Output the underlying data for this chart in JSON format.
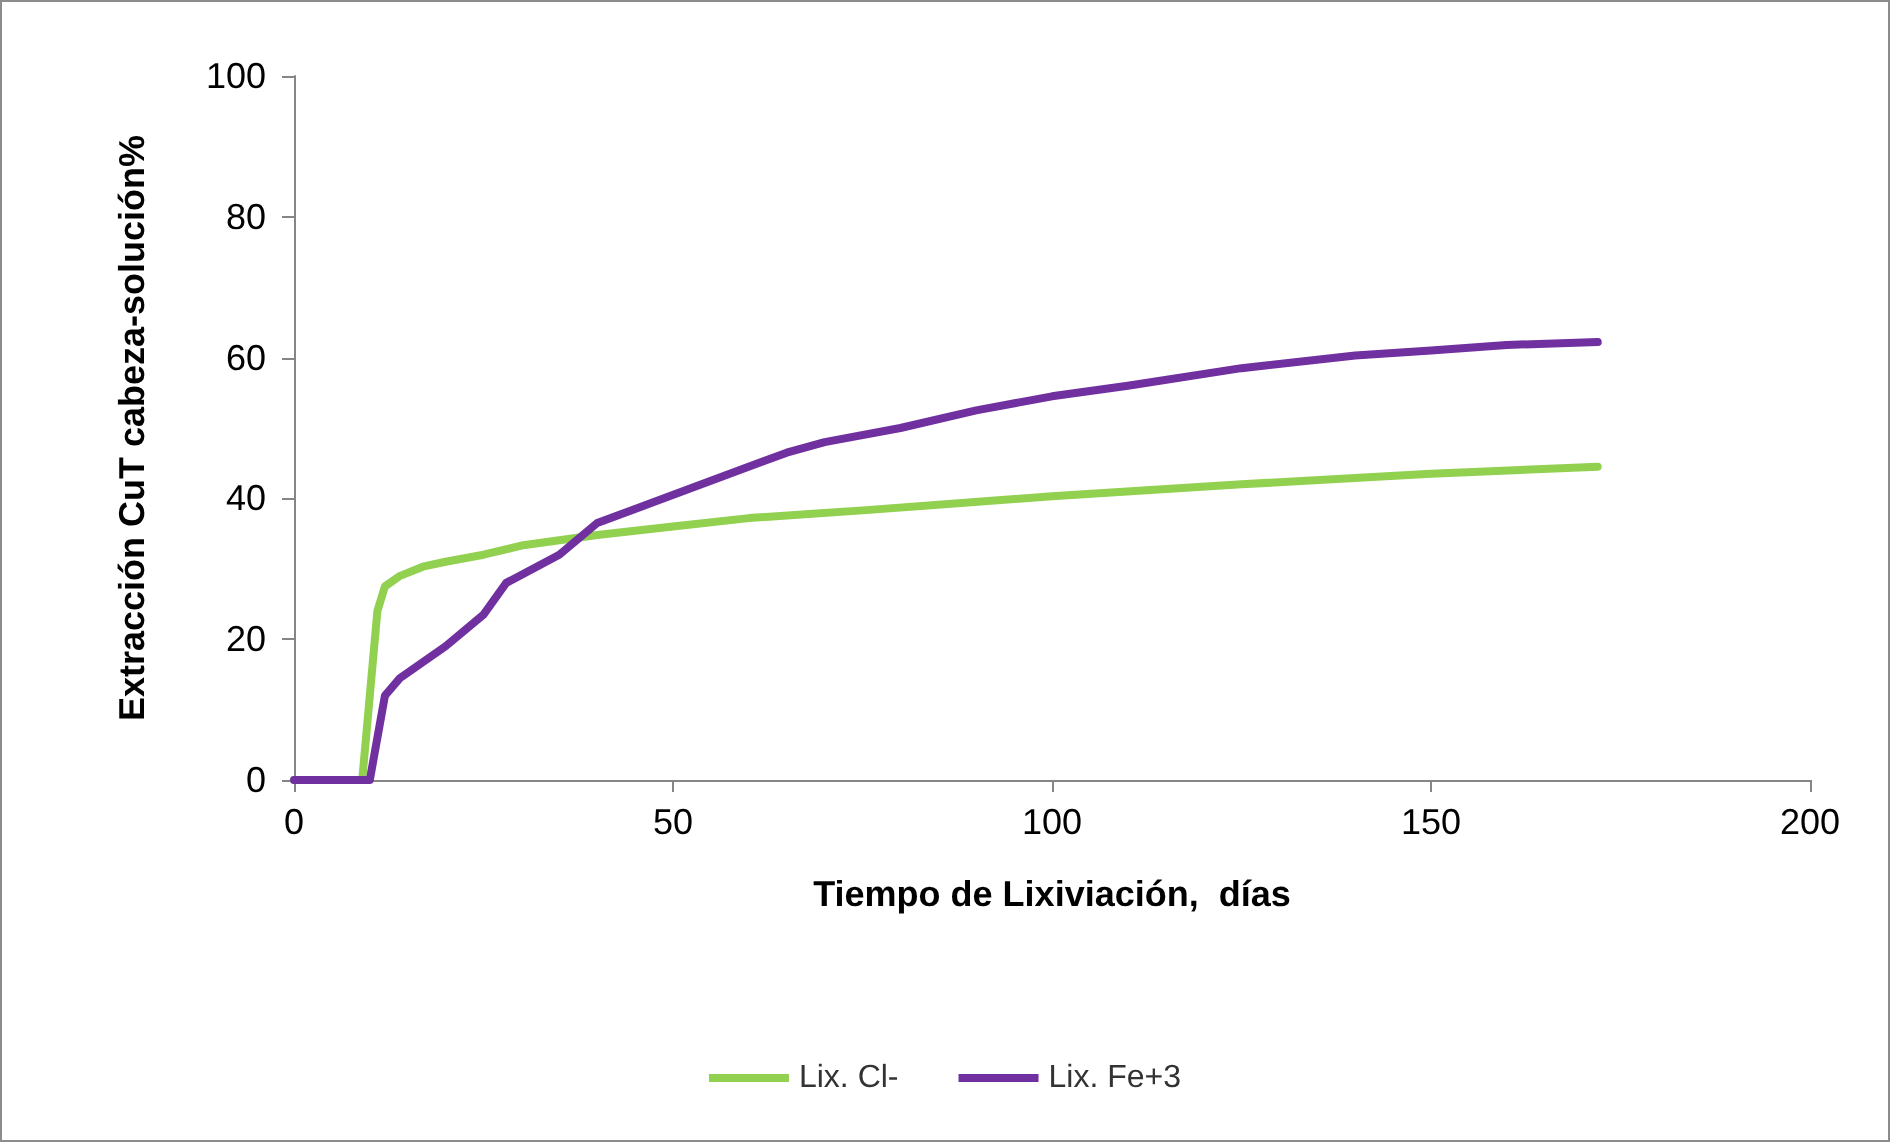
{
  "chart_data": {
    "type": "line",
    "xlabel": "Tiempo de Lixiviación,  días",
    "ylabel": "Extracción CuT cabeza-solución%",
    "xlim": [
      0,
      200
    ],
    "xticks": [
      0,
      50,
      100,
      150,
      200
    ],
    "ylim": [
      0,
      100
    ],
    "yticks": [
      0,
      20,
      40,
      60,
      80,
      100
    ],
    "grid": false,
    "legend": "bottom",
    "marker": "none",
    "line_style": "solid",
    "series": [
      {
        "name": "Lix. Cl-",
        "color": "#92d050",
        "x": [
          0,
          9,
          10,
          11,
          12,
          14,
          17,
          20,
          25,
          30,
          40,
          50,
          60,
          75,
          100,
          125,
          150,
          172
        ],
        "values": [
          0,
          0,
          12,
          24,
          27.5,
          29,
          30.3,
          31,
          32,
          33.3,
          34.8,
          36,
          37.2,
          38.3,
          40.3,
          42,
          43.5,
          44.5
        ]
      },
      {
        "name": "Lix. Fe+3",
        "color": "#7030a0",
        "x": [
          0,
          10,
          11,
          12,
          14,
          20,
          25,
          28,
          35,
          40,
          45,
          55,
          65,
          70,
          80,
          90,
          100,
          110,
          125,
          140,
          150,
          160,
          172
        ],
        "values": [
          0,
          0,
          6,
          12,
          14.5,
          19,
          23.5,
          28,
          32,
          36.5,
          38.5,
          42.5,
          46.5,
          48,
          50,
          52.5,
          54.5,
          56,
          58.5,
          60.3,
          61,
          61.8,
          62.2
        ]
      }
    ]
  }
}
